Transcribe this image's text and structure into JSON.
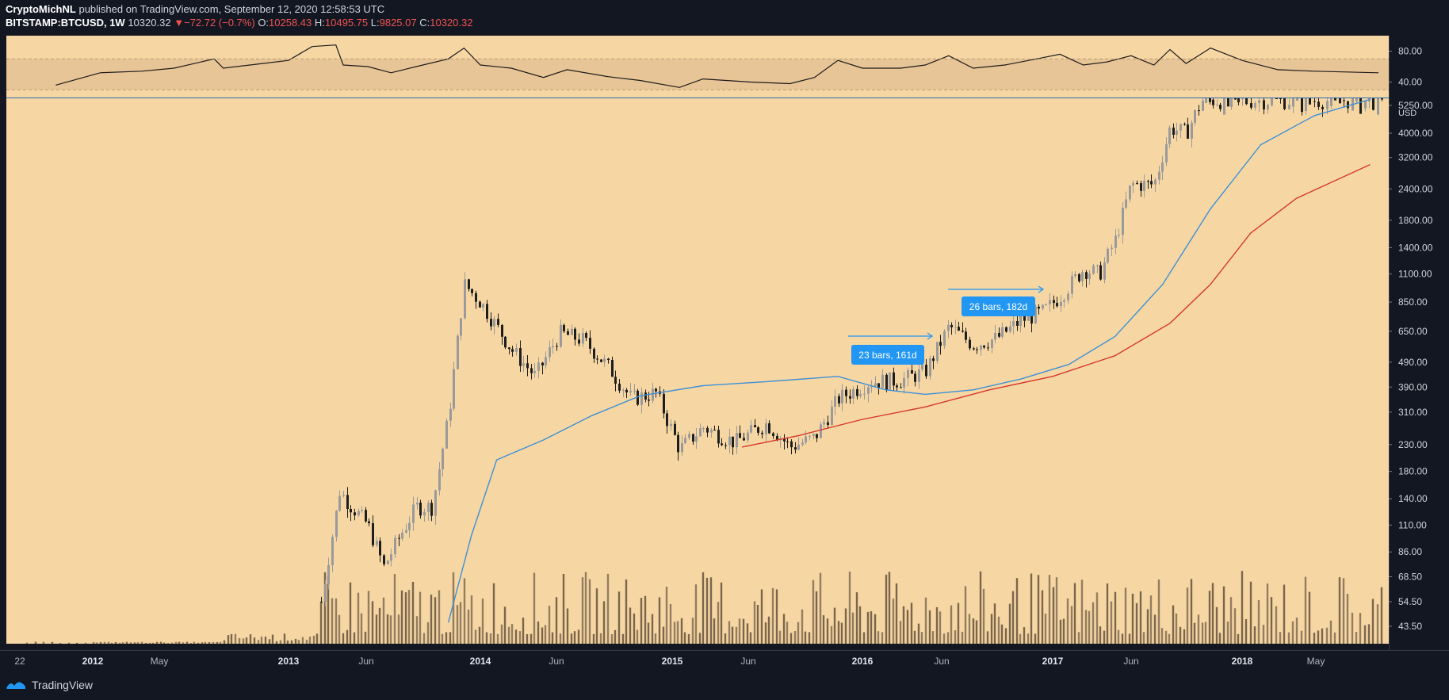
{
  "header": {
    "author": "CryptoMichNL",
    "published": "published on TradingView.com, September 12, 2020 12:58:53 UTC",
    "symbol": "BITSTAMP:BTCUSD, 1W",
    "last": "10320.32",
    "change_arrow": "▼",
    "change": "−72.72 (−0.7%)",
    "open_label": "O:",
    "open": "10258.43",
    "high_label": "H:",
    "high": "10495.75",
    "low_label": "L:",
    "low": "9825.07",
    "close_label": "C:",
    "close": "10320.32"
  },
  "footer": {
    "brand": "TradingView",
    "logo_icon": "tradingview-logo-icon"
  },
  "colors": {
    "panel_bg": "#f6d7a4",
    "rsi_band": "#e8c596",
    "candle_up": "#9a9a9a",
    "candle_down": "#1e1e1e",
    "ma_fast": "#3e8fd6",
    "ma_slow": "#d6362b",
    "label_box": "#2196f3"
  },
  "chart_data": {
    "type": "candlestick",
    "scale": "log",
    "currency": "USD",
    "current_price_label": "5250.00",
    "price_ticks": [
      "4000.00",
      "3200.00",
      "2400.00",
      "1800.00",
      "1400.00",
      "1100.00",
      "850.00",
      "650.00",
      "490.00",
      "390.00",
      "310.00",
      "230.00",
      "180.00",
      "140.00",
      "110.00",
      "86.00",
      "68.50",
      "54.50",
      "43.50"
    ],
    "rsi_ticks": [
      "80.00",
      "40.00"
    ],
    "time_ticks": [
      "22",
      "2012",
      "May",
      "2013",
      "Jun",
      "2014",
      "Jun",
      "2015",
      "Jun",
      "2016",
      "Jun",
      "2017",
      "Jun",
      "2018",
      "May"
    ],
    "annotations": [
      {
        "text": "23 bars, 161d"
      },
      {
        "text": "26 bars, 182d"
      }
    ],
    "price_series": [
      {
        "date": "2013-03-01",
        "close": 50
      },
      {
        "date": "2013-04-08",
        "close": 150
      },
      {
        "date": "2013-05-01",
        "close": 130
      },
      {
        "date": "2013-06-01",
        "close": 110
      },
      {
        "date": "2013-07-01",
        "close": 75
      },
      {
        "date": "2013-08-01",
        "close": 100
      },
      {
        "date": "2013-09-01",
        "close": 130
      },
      {
        "date": "2013-10-01",
        "close": 130
      },
      {
        "date": "2013-11-01",
        "close": 300
      },
      {
        "date": "2013-12-01",
        "close": 1000
      },
      {
        "date": "2014-01-01",
        "close": 850
      },
      {
        "date": "2014-03-01",
        "close": 550
      },
      {
        "date": "2014-04-15",
        "close": 430
      },
      {
        "date": "2014-06-01",
        "close": 640
      },
      {
        "date": "2014-07-15",
        "close": 600
      },
      {
        "date": "2014-09-01",
        "close": 470
      },
      {
        "date": "2014-10-15",
        "close": 350
      },
      {
        "date": "2014-12-01",
        "close": 370
      },
      {
        "date": "2015-01-15",
        "close": 220
      },
      {
        "date": "2015-03-01",
        "close": 270
      },
      {
        "date": "2015-05-01",
        "close": 235
      },
      {
        "date": "2015-07-01",
        "close": 280
      },
      {
        "date": "2015-08-15",
        "close": 225
      },
      {
        "date": "2015-10-01",
        "close": 245
      },
      {
        "date": "2015-11-15",
        "close": 350
      },
      {
        "date": "2016-01-15",
        "close": 410
      },
      {
        "date": "2016-03-15",
        "close": 415
      },
      {
        "date": "2016-05-01",
        "close": 450
      },
      {
        "date": "2016-06-15",
        "close": 680
      },
      {
        "date": "2016-08-01",
        "close": 575
      },
      {
        "date": "2016-09-15",
        "close": 610
      },
      {
        "date": "2016-11-01",
        "close": 720
      },
      {
        "date": "2016-12-15",
        "close": 780
      },
      {
        "date": "2017-01-15",
        "close": 900
      },
      {
        "date": "2017-03-01",
        "close": 1150
      },
      {
        "date": "2017-04-01",
        "close": 1100
      },
      {
        "date": "2017-05-01",
        "close": 1500
      },
      {
        "date": "2017-06-01",
        "close": 2500
      },
      {
        "date": "2017-07-15",
        "close": 2500
      },
      {
        "date": "2017-08-15",
        "close": 4200
      },
      {
        "date": "2017-09-15",
        "close": 4000
      },
      {
        "date": "2017-10-15",
        "close": 5400
      }
    ],
    "ma_fast": [
      {
        "date": "2013-11-01",
        "value": 45
      },
      {
        "date": "2013-12-15",
        "value": 100
      },
      {
        "date": "2014-02-01",
        "value": 200
      },
      {
        "date": "2014-05-01",
        "value": 240
      },
      {
        "date": "2014-08-01",
        "value": 300
      },
      {
        "date": "2014-11-01",
        "value": 360
      },
      {
        "date": "2015-03-01",
        "value": 395
      },
      {
        "date": "2015-07-01",
        "value": 410
      },
      {
        "date": "2015-11-15",
        "value": 430
      },
      {
        "date": "2016-02-15",
        "value": 380
      },
      {
        "date": "2016-05-01",
        "value": 365
      },
      {
        "date": "2016-08-01",
        "value": 380
      },
      {
        "date": "2016-11-01",
        "value": 420
      },
      {
        "date": "2017-02-01",
        "value": 480
      },
      {
        "date": "2017-05-01",
        "value": 620
      },
      {
        "date": "2017-08-01",
        "value": 1000
      },
      {
        "date": "2017-11-01",
        "value": 2000
      },
      {
        "date": "2018-02-01",
        "value": 3600
      },
      {
        "date": "2018-05-01",
        "value": 4700
      },
      {
        "date": "2018-08-01",
        "value": 5450
      }
    ],
    "ma_slow": [
      {
        "date": "2015-05-15",
        "value": 225
      },
      {
        "date": "2015-09-01",
        "value": 250
      },
      {
        "date": "2016-01-01",
        "value": 290
      },
      {
        "date": "2016-05-01",
        "value": 325
      },
      {
        "date": "2016-09-01",
        "value": 380
      },
      {
        "date": "2017-01-01",
        "value": 430
      },
      {
        "date": "2017-05-01",
        "value": 520
      },
      {
        "date": "2017-08-15",
        "value": 700
      },
      {
        "date": "2017-11-01",
        "value": 1000
      },
      {
        "date": "2018-01-15",
        "value": 1600
      },
      {
        "date": "2018-04-01",
        "value": 2200
      },
      {
        "date": "2018-08-01",
        "value": 3000
      }
    ],
    "rsi_range": [
      20,
      100
    ],
    "rsi_band": [
      30,
      70
    ],
    "rsi_series": [
      {
        "date": "2011-12-01",
        "value": 36
      },
      {
        "date": "2012-01-15",
        "value": 52
      },
      {
        "date": "2012-04-01",
        "value": 54
      },
      {
        "date": "2012-06-01",
        "value": 58
      },
      {
        "date": "2012-08-15",
        "value": 70
      },
      {
        "date": "2012-09-01",
        "value": 58
      },
      {
        "date": "2012-11-01",
        "value": 63
      },
      {
        "date": "2013-01-01",
        "value": 68
      },
      {
        "date": "2013-02-15",
        "value": 86
      },
      {
        "date": "2013-04-01",
        "value": 88
      },
      {
        "date": "2013-04-15",
        "value": 62
      },
      {
        "date": "2013-06-01",
        "value": 60
      },
      {
        "date": "2013-07-15",
        "value": 52
      },
      {
        "date": "2013-09-01",
        "value": 60
      },
      {
        "date": "2013-11-01",
        "value": 70
      },
      {
        "date": "2013-12-01",
        "value": 84
      },
      {
        "date": "2014-01-01",
        "value": 62
      },
      {
        "date": "2014-03-01",
        "value": 58
      },
      {
        "date": "2014-05-01",
        "value": 46
      },
      {
        "date": "2014-06-15",
        "value": 56
      },
      {
        "date": "2014-09-01",
        "value": 47
      },
      {
        "date": "2014-11-01",
        "value": 42
      },
      {
        "date": "2015-01-15",
        "value": 33
      },
      {
        "date": "2015-03-01",
        "value": 44
      },
      {
        "date": "2015-06-01",
        "value": 40
      },
      {
        "date": "2015-08-15",
        "value": 38
      },
      {
        "date": "2015-10-01",
        "value": 46
      },
      {
        "date": "2015-11-15",
        "value": 68
      },
      {
        "date": "2016-01-01",
        "value": 58
      },
      {
        "date": "2016-03-15",
        "value": 58
      },
      {
        "date": "2016-05-01",
        "value": 62
      },
      {
        "date": "2016-06-15",
        "value": 74
      },
      {
        "date": "2016-08-01",
        "value": 58
      },
      {
        "date": "2016-10-01",
        "value": 62
      },
      {
        "date": "2016-12-01",
        "value": 70
      },
      {
        "date": "2017-01-15",
        "value": 76
      },
      {
        "date": "2017-03-01",
        "value": 62
      },
      {
        "date": "2017-04-15",
        "value": 66
      },
      {
        "date": "2017-06-01",
        "value": 74
      },
      {
        "date": "2017-07-15",
        "value": 62
      },
      {
        "date": "2017-08-15",
        "value": 82
      },
      {
        "date": "2017-09-15",
        "value": 64
      },
      {
        "date": "2017-11-01",
        "value": 84
      },
      {
        "date": "2018-01-01",
        "value": 68
      },
      {
        "date": "2018-03-01",
        "value": 56
      },
      {
        "date": "2018-05-01",
        "value": 54
      },
      {
        "date": "2018-08-15",
        "value": 52
      }
    ]
  }
}
